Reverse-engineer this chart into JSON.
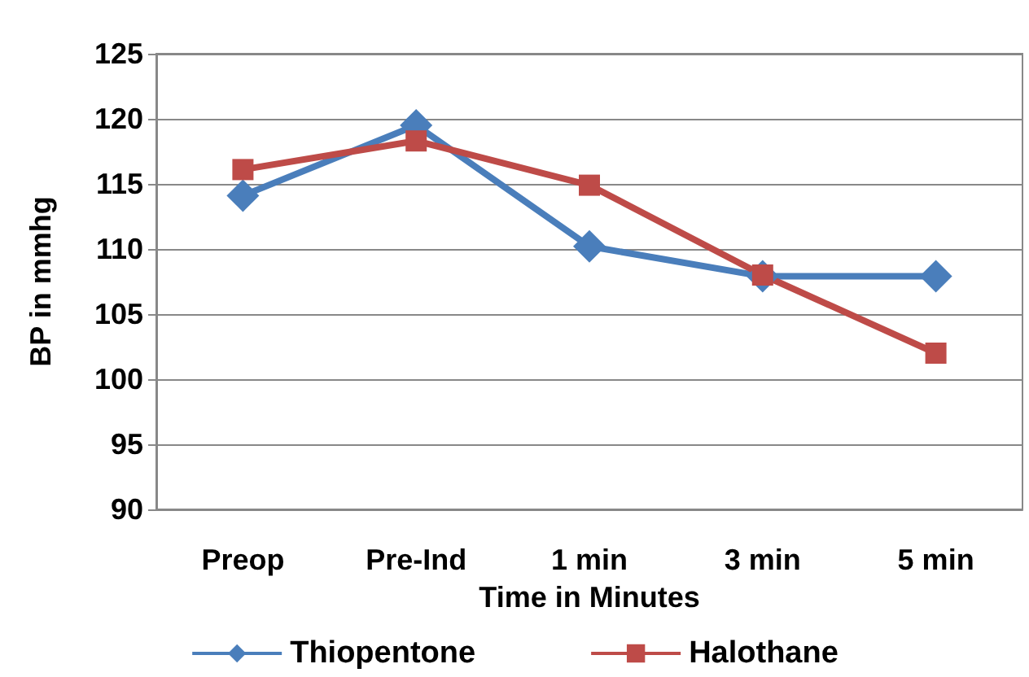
{
  "chart_data": {
    "type": "line",
    "xlabel": "Time in Minutes",
    "ylabel": "BP in mmhg",
    "categories": [
      "Preop",
      "Pre-Ind",
      "1 min",
      "3 min",
      "5 min"
    ],
    "series": [
      {
        "name": "Thiopentone",
        "color": "#4a7ebb",
        "marker": "diamond",
        "values": [
          114.1,
          119.5,
          110.2,
          107.9,
          107.9
        ]
      },
      {
        "name": "Halothane",
        "color": "#be4b48",
        "marker": "square",
        "values": [
          116.1,
          118.3,
          114.9,
          108,
          102
        ]
      }
    ],
    "ylim": [
      90,
      125
    ],
    "yticks": [
      90,
      95,
      100,
      105,
      110,
      115,
      120,
      125
    ],
    "grid": "y",
    "legend": "bottom",
    "line_style": "solid"
  }
}
